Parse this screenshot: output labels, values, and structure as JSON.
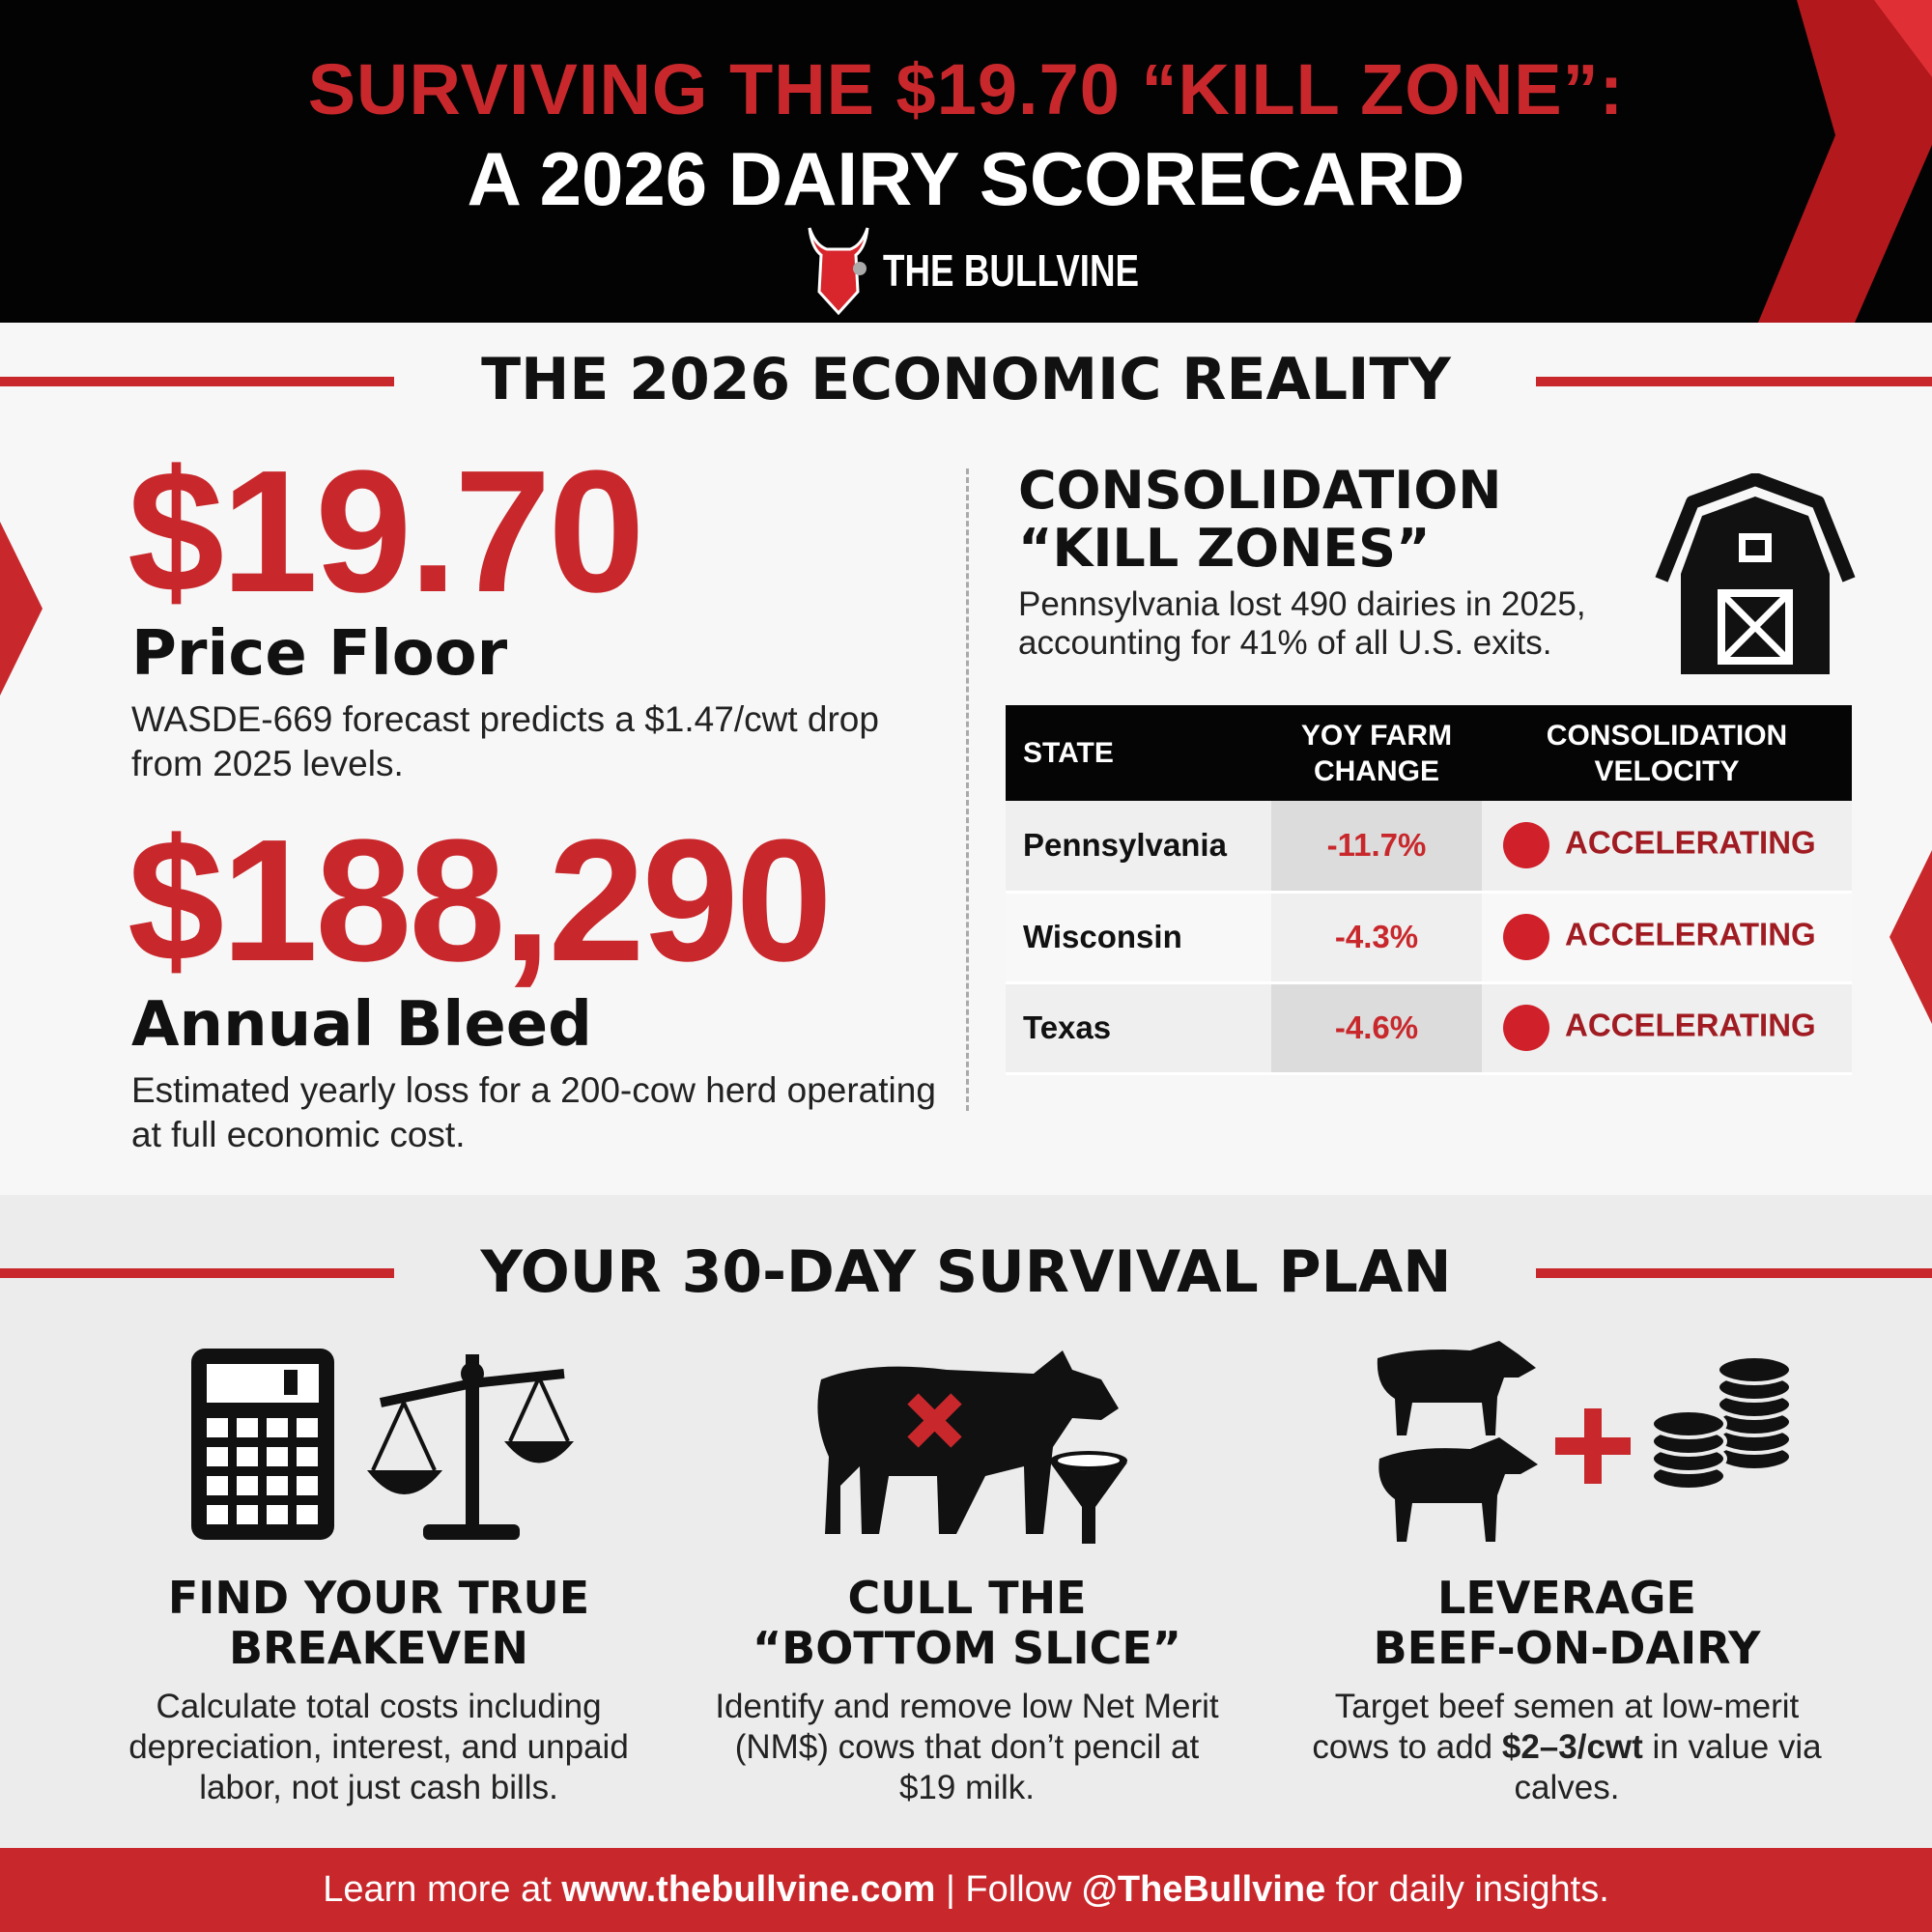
{
  "header": {
    "title_line1": "SURVIVING THE $19.70 “KILL ZONE”:",
    "title_line2": "A 2026 DAIRY SCORECARD",
    "brand": "THE BULLVINE"
  },
  "economic": {
    "heading": "THE 2026 ECONOMIC REALITY",
    "stat1": {
      "value": "$19.70",
      "label": "Price Floor",
      "desc": "WASDE-669 forecast predicts a $1.47/cwt drop from 2025 levels."
    },
    "stat2": {
      "value": "$188,290",
      "label": "Annual Bleed",
      "desc": "Estimated yearly loss for a 200-cow herd operating at full economic cost."
    },
    "consolidation": {
      "title_line1": "CONSOLIDATION",
      "title_line2": "“KILL ZONES”",
      "desc": "Pennsylvania lost 490 dairies in 2025, accounting for 41% of all U.S. exits.",
      "table": {
        "headers": [
          "STATE",
          "YOY FARM CHANGE",
          "CONSOLIDATION VELOCITY"
        ],
        "rows": [
          {
            "state": "Pennsylvania",
            "change": "-11.7%",
            "velocity": "ACCELERATING"
          },
          {
            "state": "Wisconsin",
            "change": "-4.3%",
            "velocity": "ACCELERATING"
          },
          {
            "state": "Texas",
            "change": "-4.6%",
            "velocity": "ACCELERATING"
          }
        ]
      }
    }
  },
  "plan": {
    "heading": "YOUR 30-DAY SURVIVAL PLAN",
    "steps": [
      {
        "title1": "FIND YOUR TRUE",
        "title2": "BREAKEVEN",
        "desc": "Calculate total costs including depreciation, interest, and unpaid labor, not just cash bills.",
        "icons": [
          "calculator-icon",
          "scale-icon"
        ]
      },
      {
        "title1": "CULL THE",
        "title2": "“BOTTOM SLICE”",
        "desc": "Identify and remove low Net Merit (NM$) cows that don’t pencil at $19 milk.",
        "icons": [
          "cow-x-icon",
          "funnel-icon"
        ]
      },
      {
        "title1": "LEVERAGE",
        "title2": "BEEF-ON-DAIRY",
        "desc_pre": "Target beef semen at low-merit cows to add ",
        "desc_bold": "$2–3/cwt",
        "desc_post": " in value via calves.",
        "icons": [
          "cattle-icon",
          "plus-icon",
          "coins-icon"
        ]
      }
    ]
  },
  "footer": {
    "pre": "Learn more at ",
    "url": "www.thebullvine.com",
    "sep": " | Follow ",
    "handle": "@TheBullvine",
    "post": " for daily insights."
  },
  "colors": {
    "accent": "#c8282c",
    "dark": "#030303"
  }
}
